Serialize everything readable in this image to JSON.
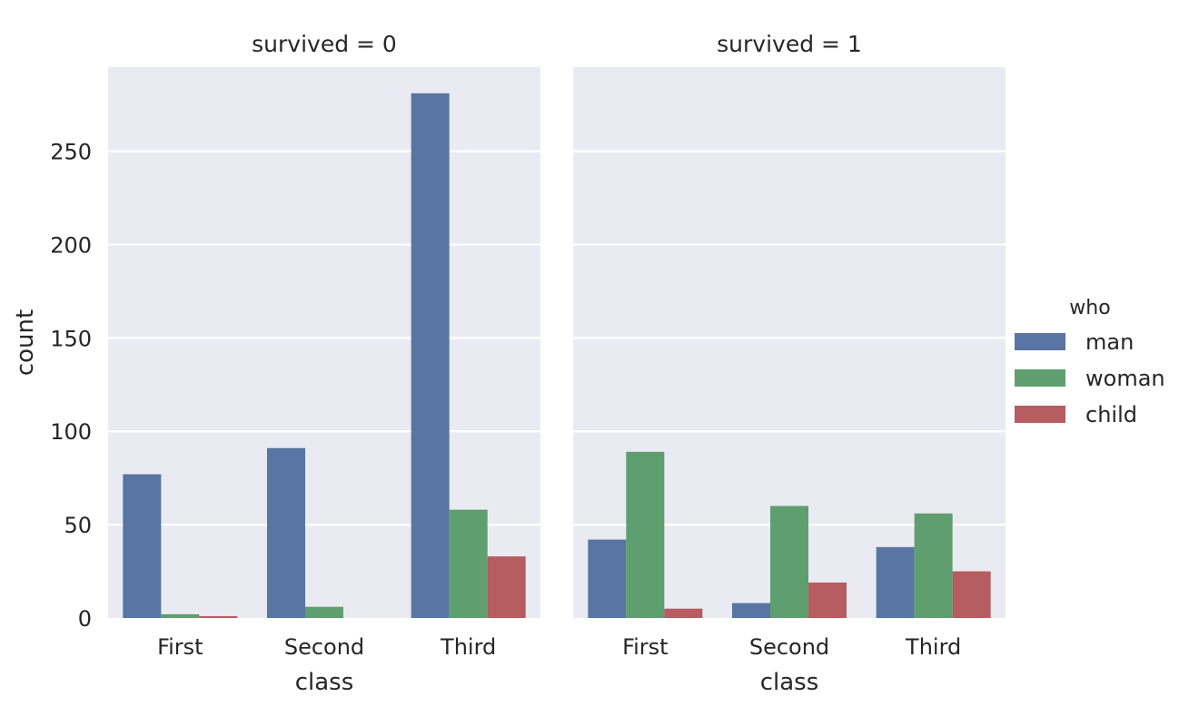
{
  "chart_data": {
    "type": "bar",
    "categories": [
      "First",
      "Second",
      "Third"
    ],
    "hue_title": "who",
    "series_colors": {
      "man": "#5875a4",
      "woman": "#5f9e6e",
      "child": "#b55d60"
    },
    "panels": [
      {
        "title": "survived = 0",
        "xlabel": "class",
        "ylabel": "count",
        "series": [
          {
            "name": "man",
            "values": [
              77,
              91,
              281
            ]
          },
          {
            "name": "woman",
            "values": [
              2,
              6,
              58
            ]
          },
          {
            "name": "child",
            "values": [
              1,
              0,
              33
            ]
          }
        ]
      },
      {
        "title": "survived = 1",
        "xlabel": "class",
        "ylabel": "",
        "series": [
          {
            "name": "man",
            "values": [
              42,
              8,
              38
            ]
          },
          {
            "name": "woman",
            "values": [
              89,
              60,
              56
            ]
          },
          {
            "name": "child",
            "values": [
              5,
              19,
              25
            ]
          }
        ]
      }
    ],
    "ylim": [
      0,
      295
    ],
    "yticks": [
      0,
      50,
      100,
      150,
      200,
      250
    ],
    "grid": true,
    "background": "#eaeaf2",
    "legend": {
      "title": "who",
      "entries": [
        "man",
        "woman",
        "child"
      ],
      "position": "right"
    }
  }
}
